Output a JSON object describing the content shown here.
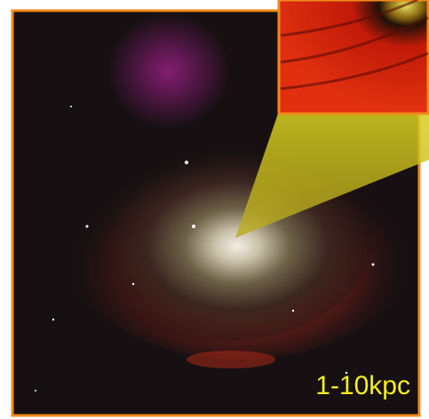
{
  "label": "1-10kpc"
}
